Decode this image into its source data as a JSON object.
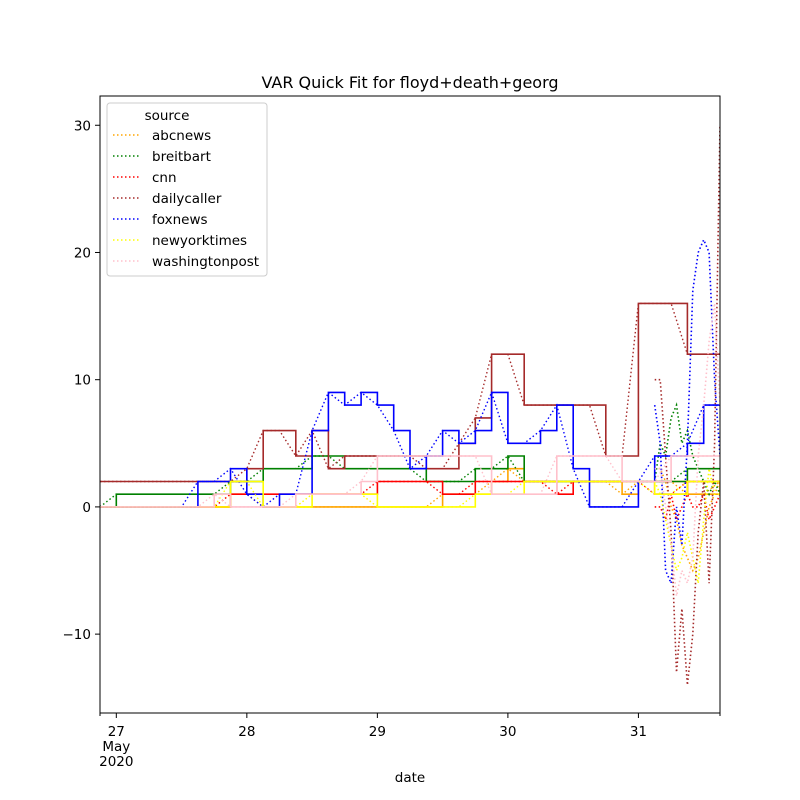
{
  "chart_data": {
    "type": "line",
    "title": "VAR Quick Fit for floyd+death+georg",
    "xlabel": "date",
    "ylabel": "",
    "x_start": "2020-05-26 21:00",
    "x_end": "2020-05-31 15:00",
    "x_step_hours": 3,
    "x_ticks": [
      {
        "value": "2020-05-27",
        "lines": [
          "27",
          "May",
          "2020"
        ]
      },
      {
        "value": "2020-05-28",
        "lines": [
          "28"
        ]
      },
      {
        "value": "2020-05-29",
        "lines": [
          "29"
        ]
      },
      {
        "value": "2020-05-30",
        "lines": [
          "30"
        ]
      },
      {
        "value": "2020-05-31",
        "lines": [
          "31"
        ]
      }
    ],
    "ylim": [
      -16.2,
      32.3
    ],
    "y_ticks": [
      -10,
      0,
      10,
      20,
      30
    ],
    "grid": false,
    "legend": {
      "title": "source",
      "placement": "top-left"
    },
    "observed_end": "2020-05-31 03:00",
    "series": [
      {
        "name": "abcnews",
        "color": "#ffa500",
        "observed": [
          0,
          0,
          0,
          0,
          0,
          0,
          0,
          0,
          1,
          1,
          0,
          0,
          0,
          0,
          0,
          0,
          0,
          0,
          0,
          0,
          0,
          1,
          1,
          1,
          2,
          3,
          2,
          2,
          2,
          2,
          2,
          2,
          1,
          2,
          2,
          2,
          1,
          1,
          2,
          2,
          3,
          3,
          3,
          3,
          3,
          3,
          3,
          3,
          3,
          3,
          3,
          3,
          3
        ],
        "forecast": [
          3,
          2,
          0,
          -1,
          -3,
          -4,
          -5,
          -4,
          -2,
          0,
          1,
          2
        ]
      },
      {
        "name": "breitbart",
        "color": "#008000",
        "observed": [
          0,
          1,
          1,
          1,
          1,
          1,
          1,
          1,
          2,
          2,
          3,
          3,
          3,
          4,
          4,
          3,
          3,
          3,
          3,
          3,
          2,
          2,
          2,
          3,
          3,
          4,
          2,
          2,
          2,
          2,
          2,
          2,
          2,
          2,
          2,
          2,
          3,
          3,
          3,
          4,
          4,
          4,
          3,
          3,
          3,
          3,
          3,
          2,
          1,
          1,
          1,
          1,
          2
        ],
        "forecast": [
          5,
          4,
          7,
          8,
          5,
          6,
          4,
          3,
          2,
          1,
          2,
          1
        ]
      },
      {
        "name": "cnn",
        "color": "#ff0000",
        "observed": [
          0,
          0,
          0,
          0,
          0,
          0,
          0,
          0,
          1,
          1,
          1,
          1,
          1,
          1,
          1,
          1,
          1,
          2,
          2,
          2,
          2,
          1,
          1,
          2,
          2,
          2,
          2,
          2,
          1,
          2,
          2,
          2,
          2,
          2,
          1,
          1,
          2,
          2,
          2,
          2,
          2,
          2,
          3,
          3,
          3,
          2,
          2,
          2,
          1,
          0,
          1,
          0,
          0
        ],
        "forecast": [
          0,
          -1,
          1,
          -1,
          0,
          1,
          0,
          0,
          1,
          -1,
          0,
          1
        ]
      },
      {
        "name": "dailycaller",
        "color": "#a52a2a",
        "observed": [
          2,
          2,
          2,
          2,
          2,
          2,
          2,
          2,
          2,
          3,
          6,
          6,
          4,
          6,
          3,
          4,
          4,
          4,
          4,
          4,
          3,
          3,
          5,
          7,
          12,
          12,
          8,
          8,
          8,
          8,
          8,
          4,
          4,
          16,
          16,
          16,
          12,
          12,
          12,
          12,
          12,
          12,
          12,
          12,
          14,
          14,
          14,
          14,
          14,
          14,
          14,
          10,
          10
        ],
        "forecast": [
          10,
          4,
          -2,
          -13,
          -8,
          -14,
          -10,
          -2,
          2,
          -6,
          5,
          30
        ]
      },
      {
        "name": "foxnews",
        "color": "#0000ff",
        "observed": [
          0,
          0,
          0,
          0,
          0,
          0,
          2,
          2,
          3,
          1,
          0,
          1,
          1,
          6,
          9,
          8,
          9,
          8,
          6,
          3,
          4,
          6,
          5,
          6,
          9,
          5,
          5,
          6,
          8,
          3,
          0,
          0,
          0,
          2,
          4,
          4,
          5,
          8,
          8,
          10,
          9,
          8,
          5,
          5,
          6,
          3,
          2,
          3,
          7,
          7,
          8,
          9,
          8
        ],
        "forecast": [
          5,
          -5,
          -6,
          0,
          -3,
          5,
          17,
          20,
          21,
          20,
          10,
          4
        ]
      },
      {
        "name": "newyorktimes",
        "color": "#ffff00",
        "observed": [
          0,
          0,
          0,
          0,
          0,
          0,
          0,
          0,
          2,
          2,
          0,
          0,
          0,
          1,
          1,
          1,
          1,
          0,
          0,
          0,
          0,
          0,
          0,
          1,
          1,
          1,
          2,
          2,
          2,
          2,
          2,
          2,
          2,
          2,
          1,
          1,
          2,
          2,
          2,
          3,
          3,
          3,
          3,
          4,
          4,
          3,
          2,
          0,
          0,
          0,
          1,
          2,
          2
        ],
        "forecast": [
          1,
          -1,
          -3,
          -5,
          -4,
          -2,
          -4,
          -6,
          -1,
          3,
          1,
          1
        ]
      },
      {
        "name": "washingtonpost",
        "color": "#ffc0cb",
        "observed": [
          0,
          0,
          0,
          0,
          0,
          0,
          0,
          1,
          0,
          0,
          0,
          0,
          1,
          1,
          1,
          1,
          2,
          4,
          4,
          4,
          4,
          4,
          4,
          4,
          1,
          1,
          1,
          1,
          4,
          4,
          4,
          4,
          2,
          2,
          2,
          4,
          4,
          4,
          4,
          3,
          3,
          3,
          3,
          3,
          3,
          4,
          2,
          2,
          3,
          3,
          3,
          3,
          3
        ],
        "forecast": [
          3,
          0,
          -3,
          -7,
          -5,
          -6,
          -4,
          4,
          8,
          13,
          16,
          8
        ]
      }
    ]
  }
}
